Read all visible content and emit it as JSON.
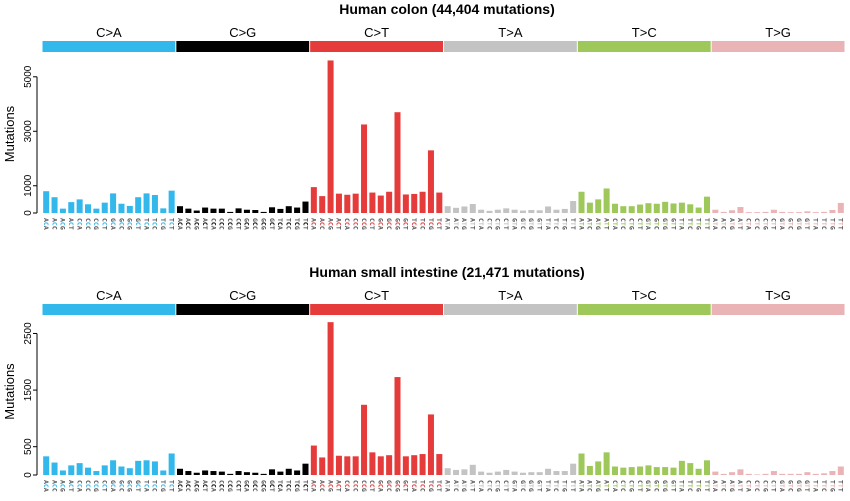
{
  "groups": [
    {
      "label": "C>A",
      "color": "#33b8ec"
    },
    {
      "label": "C>G",
      "color": "#000000"
    },
    {
      "label": "C>T",
      "color": "#e63b3b"
    },
    {
      "label": "T>A",
      "color": "#c3c3c3"
    },
    {
      "label": "T>C",
      "color": "#9ec85a"
    },
    {
      "label": "T>G",
      "color": "#eab3b6"
    }
  ],
  "contexts": {
    "C": [
      "ACA",
      "ACC",
      "ACG",
      "ACT",
      "CCA",
      "CCC",
      "CCG",
      "CCT",
      "GCA",
      "GCC",
      "GCG",
      "GCT",
      "TCA",
      "TCC",
      "TCG",
      "TCT"
    ],
    "T": [
      "ATA",
      "ATC",
      "ATG",
      "ATT",
      "CTA",
      "CTC",
      "CTG",
      "CTT",
      "GTA",
      "GTC",
      "GTG",
      "GTT",
      "TTA",
      "TTC",
      "TTG",
      "TTT"
    ]
  },
  "chart_data": [
    {
      "type": "bar",
      "title": "Human colon (44,404 mutations)",
      "ylabel": "Mutations",
      "ylim": [
        0,
        5800
      ],
      "yticks": [
        0,
        1000,
        3000,
        5000
      ],
      "grid": false,
      "series": [
        {
          "name": "C>A",
          "values": [
            800,
            580,
            160,
            400,
            500,
            320,
            160,
            380,
            720,
            340,
            260,
            580,
            720,
            660,
            170,
            820
          ]
        },
        {
          "name": "C>G",
          "values": [
            250,
            160,
            90,
            200,
            160,
            160,
            40,
            170,
            120,
            110,
            40,
            210,
            150,
            250,
            200,
            420
          ]
        },
        {
          "name": "C>T",
          "values": [
            950,
            620,
            5600,
            710,
            670,
            710,
            3250,
            750,
            640,
            780,
            3700,
            680,
            700,
            780,
            2300,
            750
          ]
        },
        {
          "name": "T>A",
          "values": [
            250,
            190,
            240,
            330,
            120,
            80,
            120,
            170,
            120,
            90,
            110,
            100,
            240,
            120,
            150,
            440
          ]
        },
        {
          "name": "T>C",
          "values": [
            780,
            380,
            500,
            900,
            340,
            250,
            250,
            310,
            360,
            340,
            410,
            350,
            380,
            320,
            200,
            600
          ]
        },
        {
          "name": "T>G",
          "values": [
            120,
            40,
            100,
            220,
            30,
            30,
            40,
            120,
            40,
            30,
            30,
            60,
            30,
            40,
            110,
            370
          ]
        }
      ]
    },
    {
      "type": "bar",
      "title": "Human small intestine (21,471 mutations)",
      "ylabel": "Mutations",
      "ylim": [
        0,
        2950
      ],
      "yticks": [
        0,
        500,
        1500,
        2500
      ],
      "grid": false,
      "series": [
        {
          "name": "C>A",
          "values": [
            330,
            220,
            80,
            170,
            210,
            130,
            70,
            170,
            260,
            150,
            120,
            250,
            260,
            240,
            80,
            380
          ]
        },
        {
          "name": "C>G",
          "values": [
            110,
            70,
            40,
            80,
            70,
            60,
            20,
            70,
            50,
            40,
            20,
            100,
            60,
            110,
            80,
            200
          ]
        },
        {
          "name": "C>T",
          "values": [
            520,
            310,
            2700,
            340,
            330,
            330,
            1240,
            400,
            330,
            350,
            1730,
            330,
            350,
            370,
            1070,
            370
          ]
        },
        {
          "name": "T>A",
          "values": [
            120,
            90,
            100,
            180,
            60,
            40,
            60,
            90,
            60,
            40,
            50,
            50,
            110,
            70,
            70,
            200
          ]
        },
        {
          "name": "T>C",
          "values": [
            380,
            160,
            240,
            400,
            150,
            130,
            140,
            150,
            170,
            140,
            140,
            130,
            250,
            210,
            110,
            260
          ]
        },
        {
          "name": "T>G",
          "values": [
            60,
            20,
            50,
            100,
            20,
            10,
            20,
            70,
            20,
            20,
            20,
            50,
            20,
            30,
            70,
            150
          ]
        }
      ]
    }
  ]
}
